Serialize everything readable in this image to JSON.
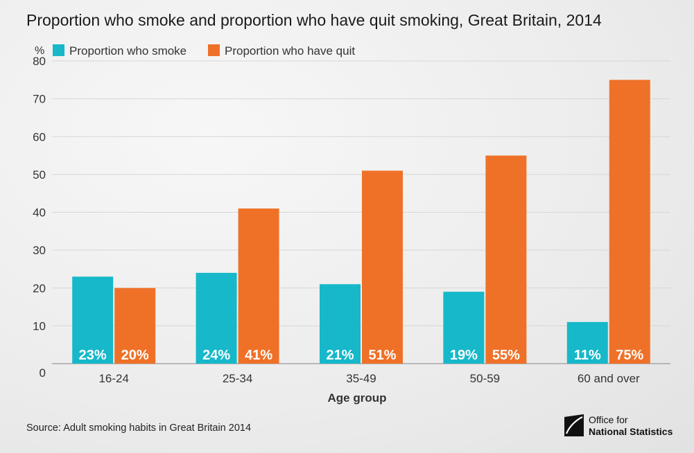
{
  "chart_data": {
    "type": "bar",
    "title": "Proportion who smoke and proportion who have quit smoking, Great Britain, 2014",
    "xlabel": "Age group",
    "ylabel": "%",
    "ylim": [
      0,
      80
    ],
    "yticks": [
      0,
      10,
      20,
      30,
      40,
      50,
      60,
      70,
      80
    ],
    "grid": true,
    "legend_position": "top-left",
    "categories": [
      "16-24",
      "25-34",
      "35-49",
      "50-59",
      "60 and over"
    ],
    "series": [
      {
        "name": "Proportion who smoke",
        "color": "#16b8c9",
        "values": [
          23,
          24,
          21,
          19,
          11
        ],
        "labels": [
          "23%",
          "24%",
          "21%",
          "19%",
          "11%"
        ]
      },
      {
        "name": "Proportion who have quit",
        "color": "#ef7128",
        "values": [
          20,
          41,
          51,
          55,
          75
        ],
        "labels": [
          "20%",
          "41%",
          "51%",
          "55%",
          "75%"
        ]
      }
    ]
  },
  "footer": {
    "source": "Source: Adult smoking habits in Great Britain 2014",
    "logo_line1": "Office for",
    "logo_line2": "National Statistics"
  }
}
